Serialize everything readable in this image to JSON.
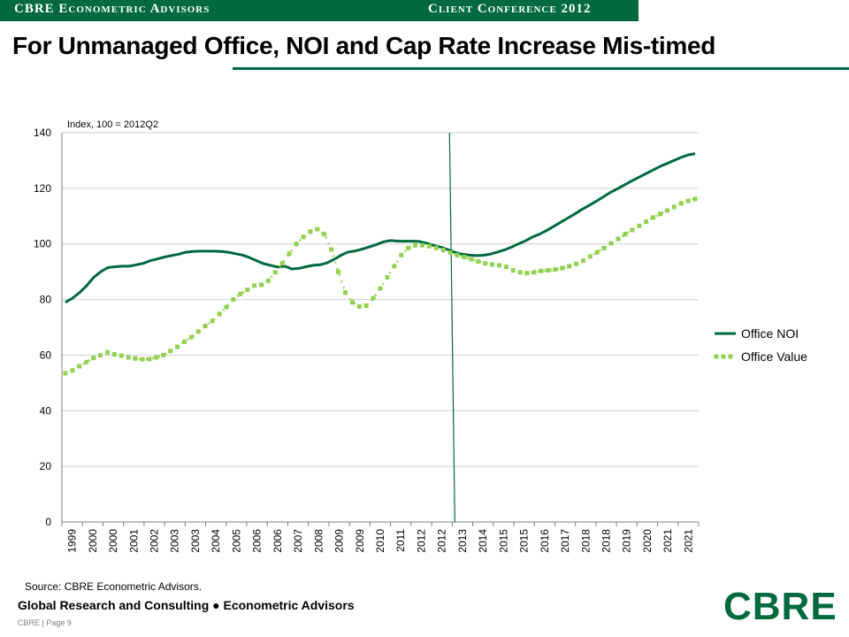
{
  "header": {
    "left_label": "CBRE Econometric Advisors",
    "right_label": "Client Conference 2012"
  },
  "title": "For Unmanaged Office, NOI and Cap Rate Increase Mis-timed",
  "source": "Source: CBRE Econometric Advisors.",
  "footer": {
    "main": "Global Research and Consulting ● Econometric Advisors",
    "page": "CBRE  |  Page 9"
  },
  "logo_text": "CBRE",
  "colors": {
    "brand_green": "#00693e",
    "series_noi": "#00693e",
    "series_value": "#92d050"
  },
  "chart_data": {
    "type": "line",
    "ylabel": "Index, 100 = 2012Q2",
    "ylim": [
      0,
      140
    ],
    "yticks": [
      0,
      20,
      40,
      60,
      80,
      100,
      120,
      140
    ],
    "x_tick_labels": [
      "1999",
      "2000",
      "2000",
      "2001",
      "2002",
      "2003",
      "2003",
      "2004",
      "2005",
      "2006",
      "2006",
      "2007",
      "2008",
      "2009",
      "2009",
      "2010",
      "2011",
      "2012",
      "2012",
      "2013",
      "2014",
      "2015",
      "2015",
      "2016",
      "2017",
      "2018",
      "2018",
      "2019",
      "2020",
      "2021",
      "2021"
    ],
    "marker_line_tick_index": 19,
    "legend_position": "right",
    "series": [
      {
        "name": "Office NOI",
        "style": "solid",
        "values": [
          79,
          80.5,
          82.5,
          85,
          88,
          90,
          91.5,
          91.8,
          92,
          92,
          92.5,
          93,
          94,
          94.6,
          95.3,
          95.8,
          96.3,
          97,
          97.3,
          97.4,
          97.4,
          97.4,
          97.3,
          97,
          96.5,
          96,
          95.1,
          94,
          92.9,
          92.3,
          91.7,
          92,
          91,
          91.2,
          91.8,
          92.3,
          92.5,
          93.2,
          94.5,
          96,
          97.1,
          97.5,
          98.2,
          99,
          99.8,
          100.8,
          101.2,
          101,
          101,
          101,
          100.9,
          100.3,
          99.5,
          98.9,
          98,
          97,
          96.3,
          96,
          95.8,
          95.9,
          96.3,
          97,
          97.8,
          98.8,
          100,
          101.1,
          102.5,
          103.5,
          104.8,
          106.3,
          107.8,
          109.3,
          110.8,
          112.4,
          113.8,
          115.3,
          116.9,
          118.5,
          119.8,
          121.2,
          122.6,
          123.9,
          125.2,
          126.5,
          127.8,
          128.9,
          130,
          131.1,
          132,
          132.5
        ]
      },
      {
        "name": "Office Value",
        "style": "dashed-square",
        "values": [
          53.5,
          54.5,
          56,
          57.5,
          59,
          60,
          61,
          60.3,
          59.8,
          59.2,
          58.8,
          58.5,
          58.6,
          59.2,
          60,
          61.5,
          63,
          64.8,
          66.5,
          68.5,
          70.5,
          72.3,
          74.8,
          77.3,
          80,
          82,
          83.5,
          85,
          85.3,
          86.8,
          89.8,
          93,
          96.5,
          100,
          102.5,
          104.4,
          105.3,
          103.5,
          98,
          90,
          82.5,
          79,
          77.5,
          77.8,
          80.5,
          84,
          88,
          92,
          96,
          98.5,
          99.5,
          99.5,
          99.2,
          98.6,
          97.8,
          96.9,
          96,
          95.3,
          94.5,
          93.7,
          93,
          92.6,
          92.3,
          91.8,
          90.5,
          89.8,
          89.5,
          89.8,
          90.3,
          90.5,
          90.8,
          91.3,
          92,
          92.8,
          94,
          95.5,
          97,
          98.5,
          100.2,
          101.8,
          103.5,
          105,
          106.5,
          108,
          109.5,
          110.8,
          112,
          113.3,
          114.6,
          115.5,
          116.2
        ]
      }
    ]
  }
}
